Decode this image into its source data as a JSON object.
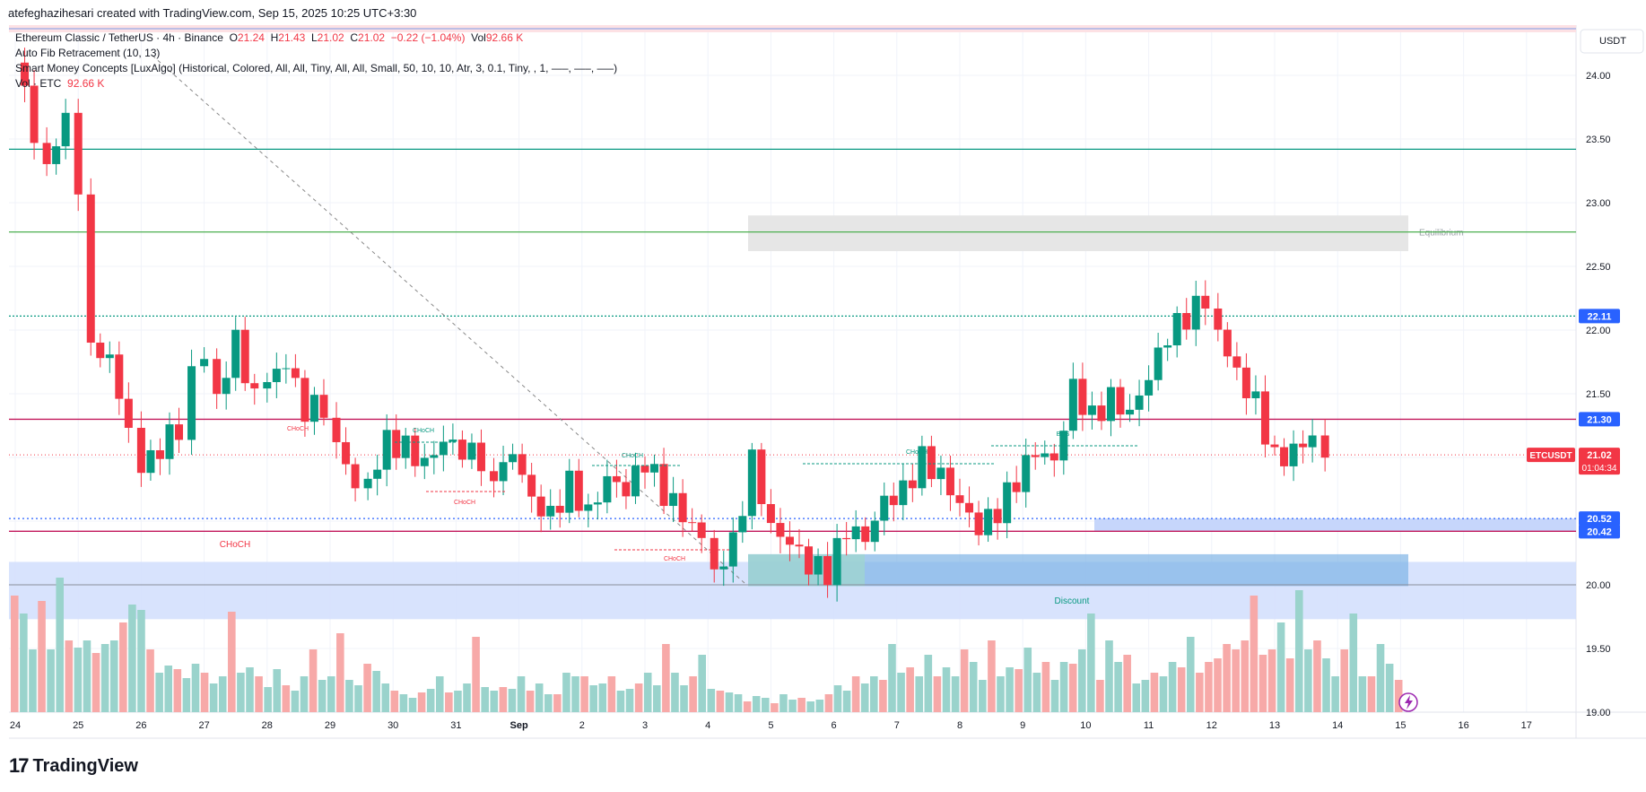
{
  "header": {
    "attribution": "atefeghazihesari created with TradingView.com, Sep 15, 2025 10:25 UTC+3:30"
  },
  "legend": {
    "symbol": "Ethereum Classic / TetherUS · 4h · Binance",
    "o_label": "O",
    "o_val": "21.24",
    "h_label": "H",
    "h_val": "21.43",
    "l_label": "L",
    "l_val": "21.02",
    "c_label": "C",
    "c_val": "21.02",
    "change": "−0.22 (−1.04%)",
    "vol_label": "Vol",
    "vol_val": "92.66 K",
    "ind1": "Auto Fib Retracement (10, 13)",
    "ind2": "Smart Money Concepts [LuxAlgo] (Historical, Colored, All, All, Tiny, All, All, Small, 50, 10, 10, Atr, 3, 0.1, Tiny, , 1, —–, —–, —–)",
    "ind3_label": "Vol · ETC",
    "ind3_val": "92.66 K"
  },
  "axis": {
    "currency": "USDT",
    "price_ticks": [
      "24.00",
      "23.50",
      "23.00",
      "22.50",
      "22.00",
      "21.50",
      "21.00",
      "20.50",
      "20.00",
      "19.50",
      "19.00"
    ],
    "time_ticks": [
      "24",
      "25",
      "26",
      "27",
      "28",
      "29",
      "30",
      "31",
      "Sep",
      "2",
      "3",
      "4",
      "5",
      "6",
      "7",
      "8",
      "9",
      "10",
      "11",
      "12",
      "13",
      "14",
      "15",
      "16",
      "17"
    ]
  },
  "price_labels": {
    "l2211": "22.11",
    "l2130": "21.30",
    "symbol_tag": "ETCUSDT",
    "current": "21.02",
    "countdown": "01:04:34",
    "l2052": "20.52",
    "l2042": "20.42"
  },
  "annotations": {
    "equilibrium": "Equilibrium",
    "discount": "Discount",
    "choch": "CHoCH",
    "bos": "BOS"
  },
  "colors": {
    "up": "#089981",
    "down": "#f23645",
    "vol_up": "#9ad3cc",
    "vol_down": "#f7a9a8",
    "fib_green": "#4caf50",
    "fib_teal": "#089981",
    "fib_red": "#c2185b",
    "label_blue": "#2962ff"
  },
  "footer": {
    "brand": "TradingView"
  },
  "chart_data": {
    "type": "candlestick",
    "title": "Ethereum Classic / TetherUS · 4h · Binance",
    "x": [
      "Aug 24",
      "Aug 25",
      "Aug 26",
      "Aug 27",
      "Aug 28",
      "Aug 29",
      "Aug 30",
      "Aug 31",
      "Sep 1",
      "Sep 2",
      "Sep 3",
      "Sep 4",
      "Sep 5",
      "Sep 6",
      "Sep 7",
      "Sep 8",
      "Sep 9",
      "Sep 10",
      "Sep 11",
      "Sep 12",
      "Sep 13",
      "Sep 14",
      "Sep 15"
    ],
    "close_path": [
      [
        0,
        24.1
      ],
      [
        0.3,
        23.5
      ],
      [
        0.5,
        23.2
      ],
      [
        0.8,
        23.6
      ],
      [
        1.0,
        23.1
      ],
      [
        1.2,
        22.0
      ],
      [
        1.5,
        21.8
      ],
      [
        1.8,
        21.3
      ],
      [
        2.0,
        20.9
      ],
      [
        2.3,
        21.1
      ],
      [
        2.6,
        21.2
      ],
      [
        2.8,
        21.6
      ],
      [
        3.0,
        21.7
      ],
      [
        3.2,
        21.5
      ],
      [
        3.5,
        21.9
      ],
      [
        3.8,
        21.5
      ],
      [
        4.0,
        21.7
      ],
      [
        4.3,
        21.8
      ],
      [
        4.6,
        21.4
      ],
      [
        4.9,
        21.4
      ],
      [
        5.1,
        21.0
      ],
      [
        5.4,
        20.7
      ],
      [
        5.6,
        20.8
      ],
      [
        5.9,
        21.1
      ],
      [
        6.2,
        21.1
      ],
      [
        6.5,
        21.0
      ],
      [
        6.8,
        21.2
      ],
      [
        7.1,
        21.1
      ],
      [
        7.4,
        21.0
      ],
      [
        7.6,
        20.7
      ],
      [
        7.9,
        21.0
      ],
      [
        8.2,
        20.6
      ],
      [
        8.5,
        20.5
      ],
      [
        8.8,
        20.8
      ],
      [
        9.1,
        20.6
      ],
      [
        9.4,
        20.9
      ],
      [
        9.7,
        20.8
      ],
      [
        10.0,
        21.0
      ],
      [
        10.3,
        20.7
      ],
      [
        10.6,
        20.5
      ],
      [
        10.9,
        20.3
      ],
      [
        11.1,
        20.1
      ],
      [
        11.4,
        20.3
      ],
      [
        11.7,
        21.0
      ],
      [
        12.0,
        20.5
      ],
      [
        12.3,
        20.4
      ],
      [
        12.6,
        20.2
      ],
      [
        12.9,
        20.1
      ],
      [
        13.2,
        20.4
      ],
      [
        13.5,
        20.3
      ],
      [
        13.8,
        20.6
      ],
      [
        14.1,
        20.7
      ],
      [
        14.4,
        21.0
      ],
      [
        14.7,
        20.9
      ],
      [
        15.0,
        20.7
      ],
      [
        15.3,
        20.5
      ],
      [
        15.6,
        20.6
      ],
      [
        15.9,
        20.8
      ],
      [
        16.2,
        21.0
      ],
      [
        16.5,
        20.9
      ],
      [
        16.8,
        21.5
      ],
      [
        17.1,
        21.3
      ],
      [
        17.4,
        21.5
      ],
      [
        17.7,
        21.4
      ],
      [
        18.0,
        21.7
      ],
      [
        18.3,
        22.0
      ],
      [
        18.6,
        22.1
      ],
      [
        18.9,
        22.2
      ],
      [
        19.1,
        21.9
      ],
      [
        19.4,
        21.6
      ],
      [
        19.7,
        21.4
      ],
      [
        20.0,
        21.0
      ],
      [
        20.3,
        21.1
      ],
      [
        20.6,
        21.24
      ],
      [
        20.8,
        21.02
      ]
    ],
    "current": {
      "open": 21.24,
      "high": 21.43,
      "low": 21.02,
      "close": 21.02,
      "change": -0.22,
      "change_pct": -1.04,
      "volume": "92.66K"
    },
    "levels": [
      22.77,
      23.42,
      22.11,
      21.3,
      21.02,
      20.52,
      20.42
    ],
    "ylim": [
      19.0,
      24.45
    ],
    "y_scale": "linear",
    "grid": true,
    "legend_position": "top-left"
  }
}
